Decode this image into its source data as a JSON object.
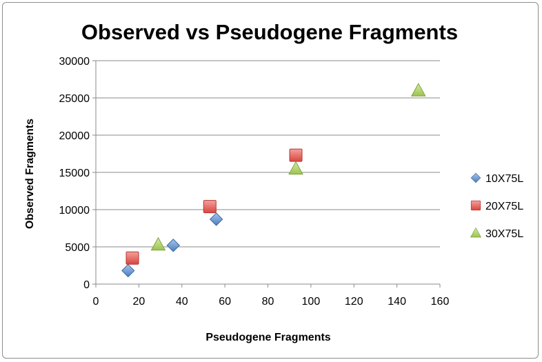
{
  "chart_data": {
    "type": "scatter",
    "title": "Observed vs Pseudogene Fragments",
    "xlabel": "Pseudogene Fragments",
    "ylabel": "Observed Fragments",
    "xlim": [
      0,
      160
    ],
    "ylim": [
      0,
      30000
    ],
    "xticks": [
      "0",
      "20",
      "40",
      "60",
      "80",
      "100",
      "120",
      "140",
      "160"
    ],
    "yticks": [
      "0",
      "5000",
      "10000",
      "15000",
      "20000",
      "25000",
      "30000"
    ],
    "grid": "horizontal",
    "legend_position": "right",
    "series": [
      {
        "name": "10X75L",
        "marker": "diamond",
        "color": "#4a7ebb",
        "points": [
          [
            15,
            1800
          ],
          [
            36,
            5200
          ],
          [
            56,
            8700
          ]
        ]
      },
      {
        "name": "20X75L",
        "marker": "square",
        "color": "#d9453f",
        "points": [
          [
            17,
            3500
          ],
          [
            53,
            10400
          ],
          [
            93,
            17300
          ]
        ]
      },
      {
        "name": "30X75L",
        "marker": "triangle",
        "color": "#9bc34f",
        "points": [
          [
            29,
            5300
          ],
          [
            93,
            15500
          ],
          [
            150,
            26000
          ]
        ]
      }
    ]
  }
}
